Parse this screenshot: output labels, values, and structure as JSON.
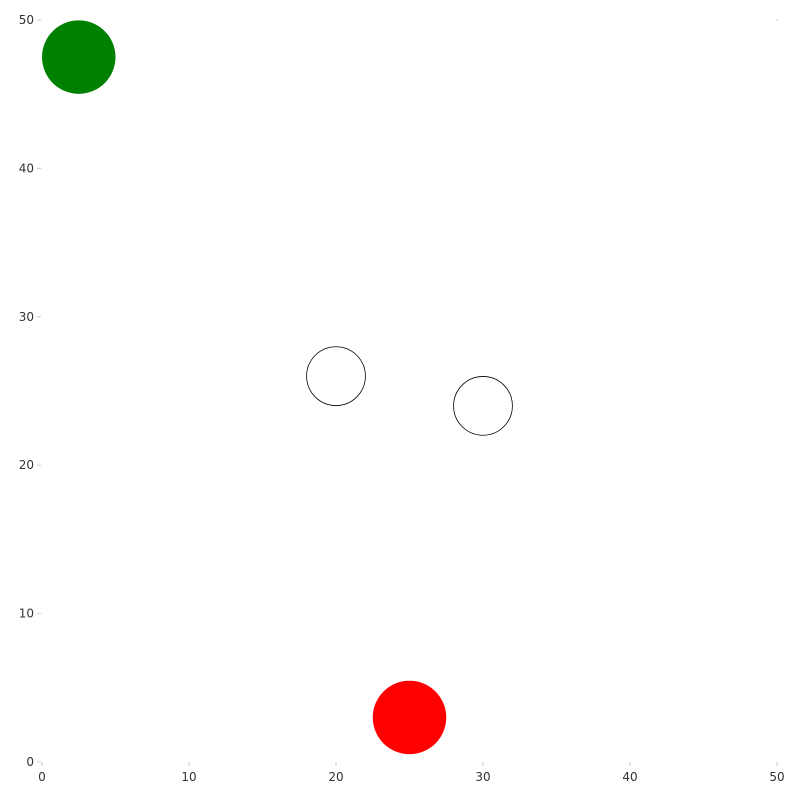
{
  "chart_data": {
    "type": "scatter",
    "title": "",
    "xlabel": "",
    "ylabel": "",
    "xlim": [
      0,
      50
    ],
    "ylim": [
      0,
      50
    ],
    "grid": false,
    "legend": "none",
    "x_ticks": [
      "0",
      "10",
      "20",
      "30",
      "40",
      "50"
    ],
    "y_ticks": [
      "0",
      "10",
      "20",
      "30",
      "40",
      "50"
    ],
    "points": [
      {
        "x": 2.5,
        "y": 47.5,
        "r": 2.5,
        "fill": "#008000",
        "stroke": "none",
        "style": "filled"
      },
      {
        "x": 20,
        "y": 26,
        "r": 2,
        "fill": "none",
        "stroke": "#000000",
        "style": "outline"
      },
      {
        "x": 30,
        "y": 24,
        "r": 2,
        "fill": "none",
        "stroke": "#000000",
        "style": "outline"
      },
      {
        "x": 25,
        "y": 3,
        "r": 2.5,
        "fill": "#ff0000",
        "stroke": "none",
        "style": "filled"
      }
    ]
  }
}
